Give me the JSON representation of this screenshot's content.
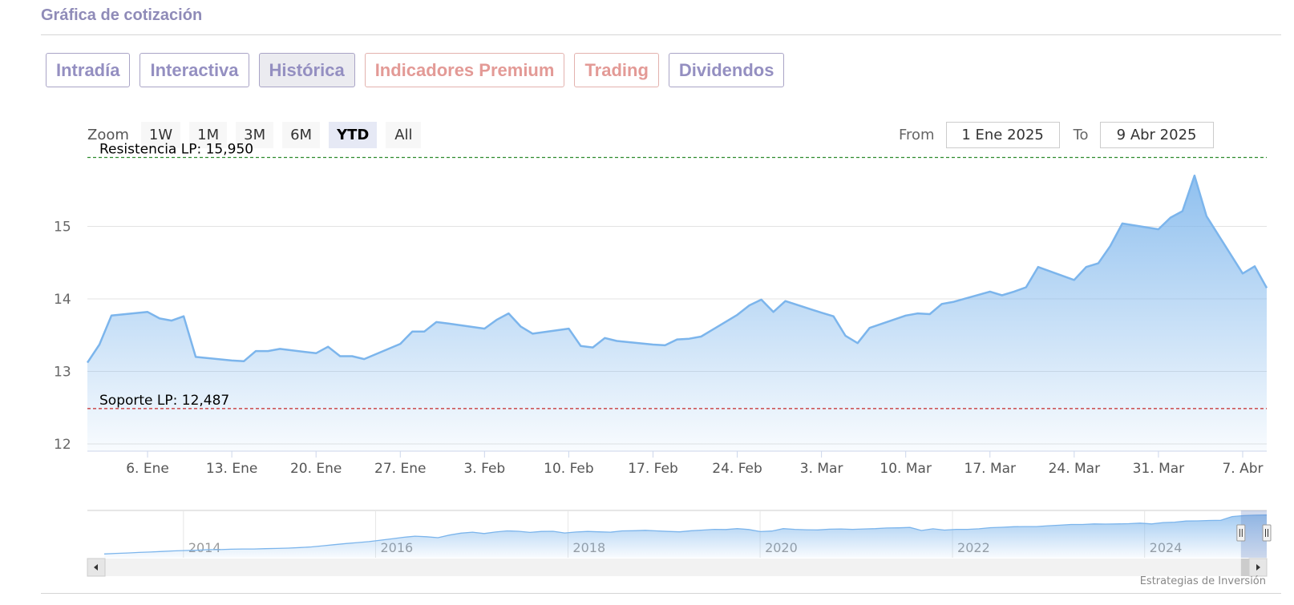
{
  "title": "Gráfica de cotización",
  "tabs": [
    {
      "label": "Intradía",
      "state": "normal"
    },
    {
      "label": "Interactiva",
      "state": "normal"
    },
    {
      "label": "Histórica",
      "state": "active"
    },
    {
      "label": "Indicadores Premium",
      "state": "premium"
    },
    {
      "label": "Trading",
      "state": "premium"
    },
    {
      "label": "Dividendos",
      "state": "normal"
    }
  ],
  "zoom": {
    "label": "Zoom",
    "buttons": [
      "1W",
      "1M",
      "3M",
      "6M",
      "YTD",
      "All"
    ],
    "selected": "YTD"
  },
  "range": {
    "from_label": "From",
    "from_value": "1 Ene 2025",
    "to_label": "To",
    "to_value": "9 Abr 2025"
  },
  "credit": "Estrategias de Inversión",
  "colors": {
    "line": "#7cb5ec",
    "tab_text": "#948fc1",
    "premium_text": "#e39a96",
    "resistance": "#2e8b2e",
    "support": "#c62828"
  },
  "icons": {
    "scroll_left": "arrow-left-icon",
    "scroll_right": "arrow-right-icon",
    "scroll_thumb": "grip-icon",
    "handle": "handle-icon"
  },
  "chart_data": {
    "type": "area",
    "x_ticks": [
      "6. Ene",
      "13. Ene",
      "20. Ene",
      "27. Ene",
      "3. Feb",
      "10. Feb",
      "17. Feb",
      "24. Feb",
      "3. Mar",
      "10. Mar",
      "17. Mar",
      "24. Mar",
      "31. Mar",
      "7. Abr"
    ],
    "y_ticks": [
      12,
      13,
      14,
      15
    ],
    "ylim": [
      11.9,
      16.0
    ],
    "x_range": [
      "2025-01-01",
      "2025-04-09"
    ],
    "grid": true,
    "points": [
      [
        "2025-01-01",
        13.12
      ],
      [
        "2025-01-02",
        13.37
      ],
      [
        "2025-01-03",
        13.77
      ],
      [
        "2025-01-06",
        13.82
      ],
      [
        "2025-01-07",
        13.73
      ],
      [
        "2025-01-08",
        13.7
      ],
      [
        "2025-01-09",
        13.76
      ],
      [
        "2025-01-10",
        13.2
      ],
      [
        "2025-01-13",
        13.15
      ],
      [
        "2025-01-14",
        13.14
      ],
      [
        "2025-01-15",
        13.28
      ],
      [
        "2025-01-16",
        13.28
      ],
      [
        "2025-01-17",
        13.31
      ],
      [
        "2025-01-20",
        13.25
      ],
      [
        "2025-01-21",
        13.34
      ],
      [
        "2025-01-22",
        13.21
      ],
      [
        "2025-01-23",
        13.21
      ],
      [
        "2025-01-24",
        13.17
      ],
      [
        "2025-01-27",
        13.38
      ],
      [
        "2025-01-28",
        13.55
      ],
      [
        "2025-01-29",
        13.55
      ],
      [
        "2025-01-30",
        13.68
      ],
      [
        "2025-01-31",
        13.66
      ],
      [
        "2025-02-03",
        13.59
      ],
      [
        "2025-02-04",
        13.71
      ],
      [
        "2025-02-05",
        13.8
      ],
      [
        "2025-02-06",
        13.62
      ],
      [
        "2025-02-07",
        13.52
      ],
      [
        "2025-02-10",
        13.59
      ],
      [
        "2025-02-11",
        13.35
      ],
      [
        "2025-02-12",
        13.33
      ],
      [
        "2025-02-13",
        13.46
      ],
      [
        "2025-02-14",
        13.42
      ],
      [
        "2025-02-17",
        13.37
      ],
      [
        "2025-02-18",
        13.36
      ],
      [
        "2025-02-19",
        13.44
      ],
      [
        "2025-02-20",
        13.45
      ],
      [
        "2025-02-21",
        13.48
      ],
      [
        "2025-02-24",
        13.78
      ],
      [
        "2025-02-25",
        13.91
      ],
      [
        "2025-02-26",
        13.99
      ],
      [
        "2025-02-27",
        13.82
      ],
      [
        "2025-02-28",
        13.97
      ],
      [
        "2025-03-03",
        13.81
      ],
      [
        "2025-03-04",
        13.76
      ],
      [
        "2025-03-05",
        13.49
      ],
      [
        "2025-03-06",
        13.39
      ],
      [
        "2025-03-07",
        13.6
      ],
      [
        "2025-03-10",
        13.77
      ],
      [
        "2025-03-11",
        13.8
      ],
      [
        "2025-03-12",
        13.79
      ],
      [
        "2025-03-13",
        13.93
      ],
      [
        "2025-03-14",
        13.96
      ],
      [
        "2025-03-17",
        14.1
      ],
      [
        "2025-03-18",
        14.05
      ],
      [
        "2025-03-19",
        14.1
      ],
      [
        "2025-03-20",
        14.16
      ],
      [
        "2025-03-21",
        14.44
      ],
      [
        "2025-03-24",
        14.26
      ],
      [
        "2025-03-25",
        14.44
      ],
      [
        "2025-03-26",
        14.49
      ],
      [
        "2025-03-27",
        14.73
      ],
      [
        "2025-03-28",
        15.04
      ],
      [
        "2025-03-31",
        14.96
      ],
      [
        "2025-04-01",
        15.12
      ],
      [
        "2025-04-02",
        15.21
      ],
      [
        "2025-04-03",
        15.7
      ],
      [
        "2025-04-04",
        15.14
      ],
      [
        "2025-04-07",
        14.35
      ],
      [
        "2025-04-08",
        14.45
      ],
      [
        "2025-04-09",
        14.15
      ]
    ],
    "plot_lines": [
      {
        "label": "Resistencia LP: 15,950",
        "value": 15.95,
        "color": "#2e8b2e",
        "style": "dashed"
      },
      {
        "label": "Soporte LP: 12,487",
        "value": 12.487,
        "color": "#c62828",
        "style": "dashed"
      }
    ],
    "navigator": {
      "year_labels": [
        "2014",
        "2016",
        "2018",
        "2020",
        "2022",
        "2024"
      ],
      "range": [
        "2013-01-01",
        "2025-04-09"
      ],
      "selected": [
        "2025-01-01",
        "2025-04-09"
      ],
      "values": [
        2.0,
        2.3,
        2.5,
        2.8,
        3.0,
        3.3,
        3.6,
        3.8,
        4.0,
        4.3,
        4.3,
        4.5,
        4.6,
        4.6,
        4.8,
        4.9,
        5.1,
        5.4,
        5.7,
        6.3,
        6.9,
        7.5,
        8.0,
        8.5,
        9.3,
        10.0,
        10.8,
        11.4,
        11.1,
        10.6,
        12.0,
        13.0,
        13.5,
        12.8,
        13.6,
        14.2,
        14.0,
        13.4,
        13.9,
        14.0,
        13.1,
        13.6,
        13.9,
        13.7,
        13.5,
        14.2,
        14.3,
        14.5,
        14.2,
        13.9,
        13.7,
        14.3,
        14.6,
        15.0,
        14.9,
        15.4,
        14.9,
        13.8,
        14.1,
        15.4,
        15.0,
        14.8,
        14.7,
        15.1,
        15.2,
        15.0,
        15.2,
        15.4,
        15.7,
        15.8,
        16.0,
        14.4,
        15.3,
        14.6,
        15.0,
        15.0,
        15.3,
        15.9,
        16.1,
        16.4,
        16.5,
        16.5,
        16.9,
        17.2,
        17.6,
        17.6,
        17.9,
        17.8,
        17.9,
        18.0,
        18.3,
        17.9,
        18.6,
        18.8,
        19.4,
        19.5,
        19.7,
        19.8,
        21.8,
        22.3,
        22.5,
        22.6
      ],
      "vmin": 0,
      "vmax": 25
    }
  }
}
